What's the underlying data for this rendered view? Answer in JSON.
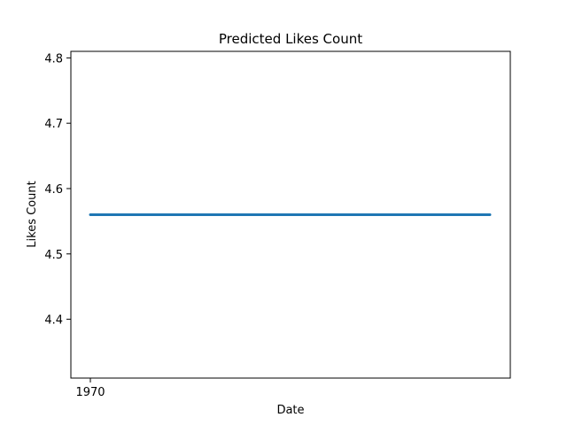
{
  "chart_data": {
    "type": "line",
    "title": "Predicted Likes Count",
    "xlabel": "Date",
    "ylabel": "Likes Count",
    "x_tick_labels": [
      "1970"
    ],
    "y_ticks": [
      4.4,
      4.5,
      4.6,
      4.7,
      4.8
    ],
    "y_tick_labels": [
      "4.4",
      "4.5",
      "4.6",
      "4.7",
      "4.8"
    ],
    "ylim": [
      4.31,
      4.81
    ],
    "grid": false,
    "legend": "none",
    "series": [
      {
        "color": "#1f77b4",
        "values": [
          4.56,
          4.56,
          4.56,
          4.56,
          4.56,
          4.56,
          4.56,
          4.56,
          4.56,
          4.56,
          4.56
        ]
      }
    ]
  }
}
